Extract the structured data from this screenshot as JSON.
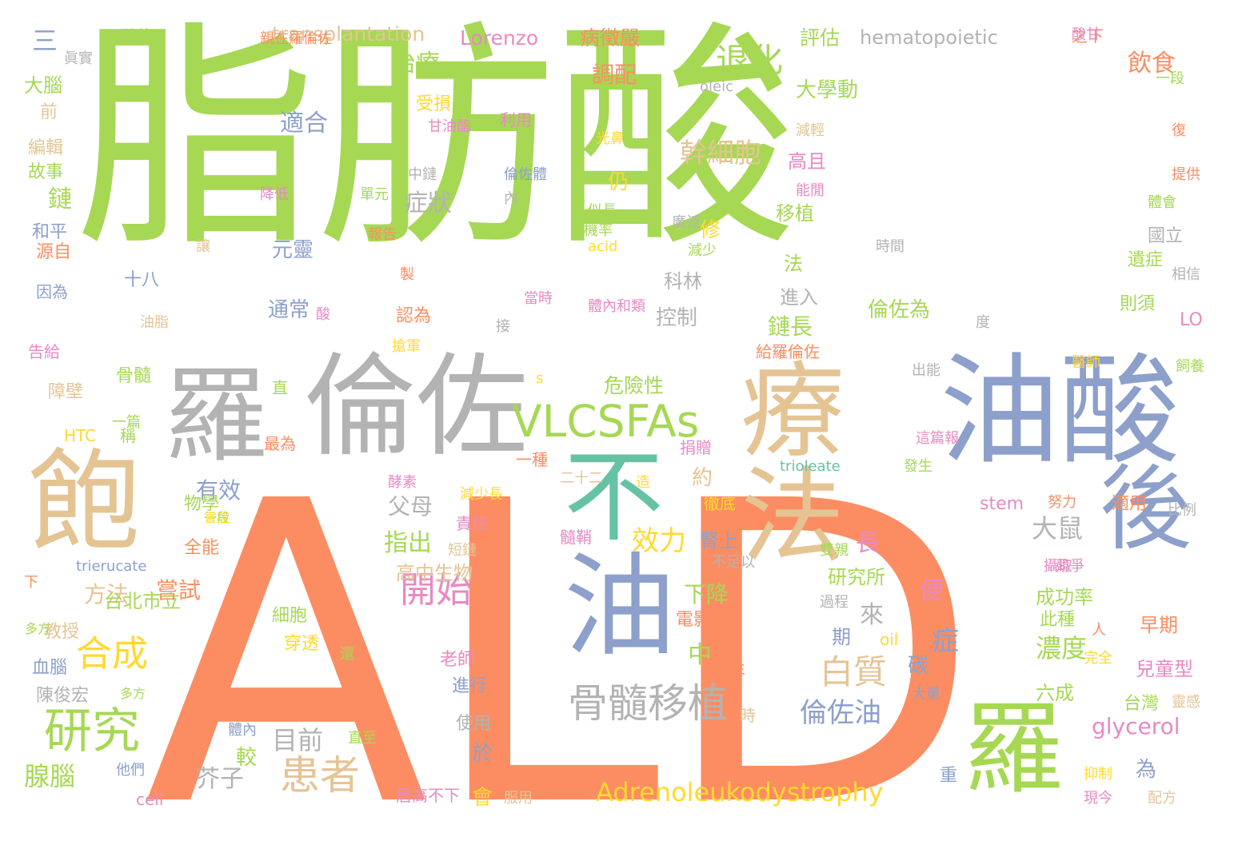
{
  "palette": {
    "green": "#a6d854",
    "orange": "#fc8d62",
    "blue": "#8da0cb",
    "teal": "#66c2a5",
    "tan": "#e5c494",
    "gray": "#b3b3b3",
    "pink": "#e78ac3",
    "yellow": "#ffd92f"
  },
  "words": [
    {
      "text": "脂肪酸",
      "color": "green"
    },
    {
      "text": "ALD",
      "color": "orange"
    },
    {
      "text": "油酸",
      "color": "blue"
    },
    {
      "text": "倫佐",
      "color": "gray"
    },
    {
      "text": "療法",
      "color": "tan"
    },
    {
      "text": "羅",
      "color": "gray"
    },
    {
      "text": "飽",
      "color": "tan"
    },
    {
      "text": "不",
      "color": "teal"
    },
    {
      "text": "油",
      "color": "blue"
    },
    {
      "text": "後",
      "color": "blue"
    },
    {
      "text": "羅",
      "color": "green"
    },
    {
      "text": "VLCSFAs",
      "color": "green"
    },
    {
      "text": "骨髓移植",
      "color": "gray"
    },
    {
      "text": "研究",
      "color": "green"
    },
    {
      "text": "合成",
      "color": "yellow"
    },
    {
      "text": "患者",
      "color": "tan"
    },
    {
      "text": "開始",
      "color": "pink"
    },
    {
      "text": "退化",
      "color": "green"
    },
    {
      "text": "Adrenoleukodystrophy",
      "color": "yellow"
    },
    {
      "text": "幹細胞",
      "color": "tan"
    },
    {
      "text": "白質",
      "color": "tan"
    },
    {
      "text": "倫佐油",
      "color": "blue"
    },
    {
      "text": "glycerol",
      "color": "pink"
    },
    {
      "text": "效力",
      "color": "yellow"
    },
    {
      "text": "適合",
      "color": "blue"
    },
    {
      "text": "症狀",
      "color": "gray"
    },
    {
      "text": "治療",
      "color": "green"
    },
    {
      "text": "調配",
      "color": "orange"
    },
    {
      "text": "飲食",
      "color": "orange"
    },
    {
      "text": "大鼠",
      "color": "gray"
    },
    {
      "text": "濃度",
      "color": "green"
    },
    {
      "text": "腺腦",
      "color": "green"
    },
    {
      "text": "目前",
      "color": "gray"
    },
    {
      "text": "有效",
      "color": "blue"
    },
    {
      "text": "父母",
      "color": "gray"
    },
    {
      "text": "指出",
      "color": "green"
    },
    {
      "text": "方法",
      "color": "tan"
    },
    {
      "text": "嘗試",
      "color": "orange"
    },
    {
      "text": "芥子",
      "color": "gray"
    },
    {
      "text": "transplantation",
      "color": "tan"
    },
    {
      "text": "hematopoietic",
      "color": "gray"
    },
    {
      "text": "Lorenzo",
      "color": "pink"
    },
    {
      "text": "病徵嚴",
      "color": "orange"
    },
    {
      "text": "評估",
      "color": "green"
    },
    {
      "text": "大學動",
      "color": "green"
    },
    {
      "text": "鏈長",
      "color": "green"
    },
    {
      "text": "倫佐為",
      "color": "green"
    },
    {
      "text": "元靈",
      "color": "blue"
    },
    {
      "text": "通常",
      "color": "blue"
    },
    {
      "text": "控制",
      "color": "gray"
    },
    {
      "text": "科林",
      "color": "gray"
    },
    {
      "text": "危險性",
      "color": "green"
    },
    {
      "text": "下降",
      "color": "green"
    },
    {
      "text": "高且",
      "color": "pink"
    },
    {
      "text": "移植",
      "color": "green"
    },
    {
      "text": "進入",
      "color": "gray"
    },
    {
      "text": "研究所",
      "color": "green"
    },
    {
      "text": "成功率",
      "color": "green"
    },
    {
      "text": "台北市立",
      "color": "green"
    },
    {
      "text": "高中生物",
      "color": "tan"
    },
    {
      "text": "給羅倫佐",
      "color": "orange"
    },
    {
      "text": "受損",
      "color": "yellow"
    },
    {
      "text": "利用",
      "color": "pink"
    },
    {
      "text": "認為",
      "color": "orange"
    },
    {
      "text": "骨髓",
      "color": "green"
    },
    {
      "text": "捐贈",
      "color": "pink"
    },
    {
      "text": "最為",
      "color": "orange"
    },
    {
      "text": "責任",
      "color": "pink"
    },
    {
      "text": "髓鞘",
      "color": "pink"
    },
    {
      "text": "一種",
      "color": "orange"
    },
    {
      "text": "電影",
      "color": "orange"
    },
    {
      "text": "細胞",
      "color": "green"
    },
    {
      "text": "穿透",
      "color": "yellow"
    },
    {
      "text": "老師",
      "color": "pink"
    },
    {
      "text": "進行",
      "color": "blue"
    },
    {
      "text": "使用",
      "color": "gray"
    },
    {
      "text": "教授",
      "color": "tan"
    },
    {
      "text": "陳俊宏",
      "color": "gray"
    },
    {
      "text": "血腦",
      "color": "blue"
    },
    {
      "text": "障壁",
      "color": "tan"
    },
    {
      "text": "全能",
      "color": "orange"
    },
    {
      "text": "大腦",
      "color": "green"
    },
    {
      "text": "故事",
      "color": "green"
    },
    {
      "text": "編輯",
      "color": "tan"
    },
    {
      "text": "和平",
      "color": "blue"
    },
    {
      "text": "源自",
      "color": "orange"
    },
    {
      "text": "鏈",
      "color": "green"
    },
    {
      "text": "三",
      "color": "blue"
    },
    {
      "text": "十八",
      "color": "blue"
    },
    {
      "text": "因為",
      "color": "blue"
    },
    {
      "text": "告給",
      "color": "pink"
    },
    {
      "text": "HTC",
      "color": "yellow"
    },
    {
      "text": "早期",
      "color": "orange"
    },
    {
      "text": "兒童型",
      "color": "pink"
    },
    {
      "text": "台灣",
      "color": "green"
    },
    {
      "text": "六成",
      "color": "green"
    },
    {
      "text": "此種",
      "color": "green"
    },
    {
      "text": "適用",
      "color": "orange"
    },
    {
      "text": "則須",
      "color": "green"
    },
    {
      "text": "遺症",
      "color": "green"
    },
    {
      "text": "國立",
      "color": "gray"
    },
    {
      "text": "stem",
      "color": "pink"
    },
    {
      "text": "cell",
      "color": "pink"
    },
    {
      "text": "trioleate",
      "color": "teal"
    },
    {
      "text": "trierucate",
      "color": "blue"
    },
    {
      "text": "oil",
      "color": "yellow"
    },
    {
      "text": "oleic",
      "color": "gray"
    },
    {
      "text": "acid",
      "color": "yellow"
    },
    {
      "text": "LO",
      "color": "pink"
    },
    {
      "text": "s",
      "color": "yellow"
    },
    {
      "text": "中",
      "color": "green"
    },
    {
      "text": "長",
      "color": "pink"
    },
    {
      "text": "來",
      "color": "gray"
    },
    {
      "text": "便",
      "color": "pink"
    },
    {
      "text": "症",
      "color": "blue"
    },
    {
      "text": "碳",
      "color": "blue"
    },
    {
      "text": "期",
      "color": "blue"
    },
    {
      "text": "較",
      "color": "green"
    },
    {
      "text": "於",
      "color": "blue"
    },
    {
      "text": "會",
      "color": "yellow"
    },
    {
      "text": "仍",
      "color": "yellow"
    },
    {
      "text": "修",
      "color": "yellow"
    },
    {
      "text": "法",
      "color": "green"
    },
    {
      "text": "約",
      "color": "tan"
    },
    {
      "text": "重",
      "color": "blue"
    },
    {
      "text": "為",
      "color": "blue"
    },
    {
      "text": "腎上",
      "color": "blue"
    },
    {
      "text": "徹底",
      "color": "yellow"
    },
    {
      "text": "服用",
      "color": "tan"
    },
    {
      "text": "居高不下",
      "color": "pink"
    },
    {
      "text": "物學",
      "color": "green"
    },
    {
      "text": "稱",
      "color": "green"
    },
    {
      "text": "一篇",
      "color": "green"
    },
    {
      "text": "下",
      "color": "orange"
    },
    {
      "text": "體內",
      "color": "blue"
    },
    {
      "text": "他們",
      "color": "blue"
    },
    {
      "text": "直至",
      "color": "green"
    },
    {
      "text": "年",
      "color": "orange"
    },
    {
      "text": "時",
      "color": "tan"
    },
    {
      "text": "直",
      "color": "green"
    },
    {
      "text": "顯著",
      "color": "green"
    },
    {
      "text": "親在羅倫佐",
      "color": "orange"
    },
    {
      "text": "之下",
      "color": "orange"
    },
    {
      "text": "一段",
      "color": "green"
    },
    {
      "text": "復",
      "color": "orange"
    },
    {
      "text": "提供",
      "color": "orange"
    },
    {
      "text": "體會",
      "color": "green"
    },
    {
      "text": "相信",
      "color": "gray"
    },
    {
      "text": "飼養",
      "color": "green"
    },
    {
      "text": "醫師",
      "color": "yellow"
    },
    {
      "text": "度",
      "color": "gray"
    },
    {
      "text": "出能",
      "color": "gray"
    },
    {
      "text": "時間",
      "color": "gray"
    },
    {
      "text": "減少",
      "color": "green"
    },
    {
      "text": "廣泛",
      "color": "gray"
    },
    {
      "text": "製",
      "color": "orange"
    },
    {
      "text": "中鏈",
      "color": "gray"
    },
    {
      "text": "倫佐體",
      "color": "blue"
    },
    {
      "text": "單元",
      "color": "green"
    },
    {
      "text": "降低",
      "color": "pink"
    },
    {
      "text": "甘油酯",
      "color": "pink"
    },
    {
      "text": "光鼻",
      "color": "yellow"
    },
    {
      "text": "似長",
      "color": "green"
    },
    {
      "text": "機率",
      "color": "green"
    },
    {
      "text": "報告",
      "color": "orange"
    },
    {
      "text": "體內和類",
      "color": "pink"
    },
    {
      "text": "接",
      "color": "gray"
    },
    {
      "text": "當時",
      "color": "pink"
    },
    {
      "text": "酸",
      "color": "pink"
    },
    {
      "text": "搶軍",
      "color": "yellow"
    },
    {
      "text": "油脂",
      "color": "tan"
    },
    {
      "text": "能閒",
      "color": "pink"
    },
    {
      "text": "減輕",
      "color": "tan"
    },
    {
      "text": "內",
      "color": "gray"
    },
    {
      "text": "前",
      "color": "tan"
    },
    {
      "text": "眞實",
      "color": "gray"
    },
    {
      "text": "讓",
      "color": "tan"
    },
    {
      "text": "造",
      "color": "yellow"
    },
    {
      "text": "二十二",
      "color": "tan"
    },
    {
      "text": "酵素",
      "color": "pink"
    },
    {
      "text": "減少長",
      "color": "yellow"
    },
    {
      "text": "短鏈",
      "color": "tan"
    },
    {
      "text": "不足以",
      "color": "gray"
    },
    {
      "text": "過程",
      "color": "gray"
    },
    {
      "text": "雙親",
      "color": "green"
    },
    {
      "text": "競爭",
      "color": "pink"
    },
    {
      "text": "攝取",
      "color": "pink"
    },
    {
      "text": "這篇報",
      "color": "pink"
    },
    {
      "text": "發生",
      "color": "green"
    },
    {
      "text": "努力",
      "color": "orange"
    },
    {
      "text": "比例",
      "color": "gray"
    },
    {
      "text": "人",
      "color": "orange"
    },
    {
      "text": "完全",
      "color": "yellow"
    },
    {
      "text": "靈感",
      "color": "tan"
    },
    {
      "text": "大量",
      "color": "blue"
    },
    {
      "text": "抑制",
      "color": "yellow"
    },
    {
      "text": "現今",
      "color": "pink"
    },
    {
      "text": "配方",
      "color": "tan"
    },
    {
      "text": "酸甘",
      "color": "pink"
    },
    {
      "text": "一段",
      "color": "green"
    },
    {
      "text": "多方",
      "color": "green"
    },
    {
      "text": "還",
      "color": "green"
    },
    {
      "text": "嘗症",
      "color": "yellow"
    },
    {
      "text": "多方",
      "color": "green"
    }
  ]
}
